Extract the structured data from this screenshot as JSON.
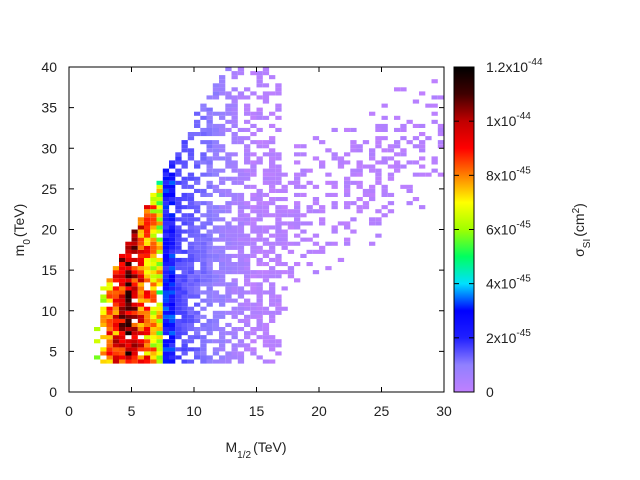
{
  "chart_data": {
    "type": "heatmap",
    "title": "",
    "xlabel": "M",
    "xlabel_sub": "1/2",
    "xlabel_unit": "(TeV)",
    "ylabel": "m",
    "ylabel_sub": "0",
    "ylabel_unit": "(TeV)",
    "xlim": [
      0,
      30
    ],
    "ylim": [
      0,
      40
    ],
    "x_ticks": [
      "0",
      "5",
      "10",
      "15",
      "20",
      "25",
      "30"
    ],
    "y_ticks": [
      "0",
      "5",
      "10",
      "15",
      "20",
      "25",
      "30",
      "35",
      "40"
    ],
    "grid": false,
    "legend": "none",
    "colorbar": {
      "label": "σ",
      "label_sub": "SI",
      "label_unit": "(cm",
      "label_sup": "2",
      "label_close": ")",
      "range": [
        0,
        1.2e-44
      ],
      "ticks": [
        {
          "value": 0,
          "base": "0",
          "exp": ""
        },
        {
          "value": 2e-45,
          "base": "2x10",
          "exp": "-45"
        },
        {
          "value": 4e-45,
          "base": "4x10",
          "exp": "-45"
        },
        {
          "value": 6e-45,
          "base": "6x10",
          "exp": "-45"
        },
        {
          "value": 8e-45,
          "base": "8x10",
          "exp": "-45"
        },
        {
          "value": 1e-44,
          "base": "1x10",
          "exp": "-44"
        },
        {
          "value": 1.2e-44,
          "base": "1.2x10",
          "exp": "-44"
        }
      ],
      "palette": [
        "#c080ff",
        "#9080ff",
        "#2020ff",
        "#0000ff",
        "#00e0ff",
        "#00ff60",
        "#a0ff00",
        "#ffff00",
        "#ff8000",
        "#ff0000",
        "#c00000",
        "#400000",
        "#000000"
      ]
    },
    "density_model": {
      "x_bin": 0.5,
      "y_bin": 0.5,
      "region_xmin": 1.5,
      "region_ymin": 3.5,
      "diagonal_slope": 0.9,
      "diagonal_offset": 14,
      "dense_limit_x": 17,
      "sparse_limit_x": 30,
      "hot_band_center_x": 4.5,
      "hot_band_edge_x": 8.5
    }
  }
}
